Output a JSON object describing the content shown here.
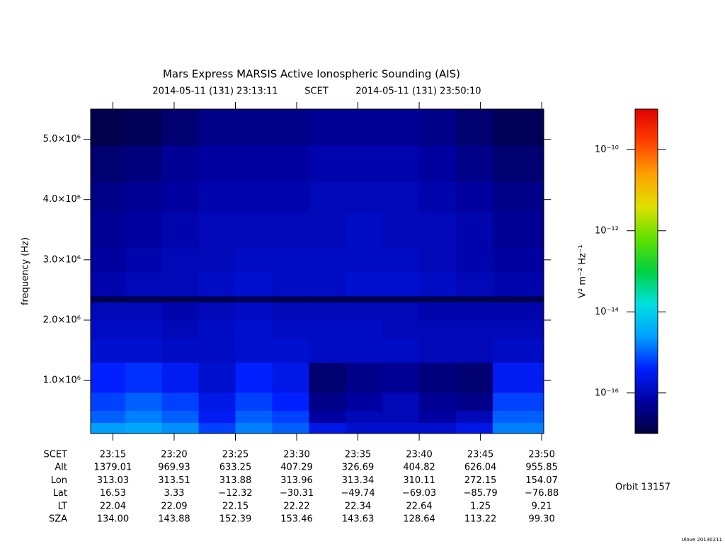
{
  "chart_data": {
    "type": "spectrogram",
    "title": "Mars Express MARSIS Active Ionospheric Sounding (AIS)",
    "subtitle_start": "2014-05-11 (131) 23:13:11",
    "subtitle_mid": "SCET",
    "subtitle_end": "2014-05-11 (131) 23:50:10",
    "ylabel": "frequency (Hz)",
    "xlim": [
      "23:13:11",
      "23:50:10"
    ],
    "xticks": [
      "23:15",
      "23:20",
      "23:25",
      "23:30",
      "23:35",
      "23:40",
      "23:45",
      "23:50"
    ],
    "ylim": [
      120000,
      5500000
    ],
    "yticks": [
      {
        "value": 1000000,
        "label": "1.0×10⁶"
      },
      {
        "value": 2000000,
        "label": "2.0×10⁶"
      },
      {
        "value": 3000000,
        "label": "3.0×10⁶"
      },
      {
        "value": 4000000,
        "label": "4.0×10⁶"
      },
      {
        "value": 5000000,
        "label": "5.0×10⁶"
      }
    ],
    "colorbar_label": "V² m⁻² Hz⁻¹",
    "clim": [
      -17,
      -9
    ],
    "cticks": [
      {
        "value": -10,
        "label": "10⁻¹⁰"
      },
      {
        "value": -12,
        "label": "10⁻¹²"
      },
      {
        "value": -14,
        "label": "10⁻¹⁴"
      },
      {
        "value": -16,
        "label": "10⁻¹⁶"
      }
    ],
    "colormap": [
      "#000040",
      "#0000a0",
      "#0020ff",
      "#00a0ff",
      "#00e0e0",
      "#00d040",
      "#60e000",
      "#e0e000",
      "#ffa000",
      "#ff4000",
      "#e00000"
    ],
    "time_bins": [
      "23:13:11",
      "23:16",
      "23:19",
      "23:22",
      "23:25",
      "23:28",
      "23:31",
      "23:34",
      "23:37",
      "23:40",
      "23:43",
      "23:46",
      "23:50:10"
    ],
    "freq_bins": [
      120000,
      300000,
      500000,
      800000,
      1300000,
      1700000,
      2000000,
      2300000,
      2400000,
      2800000,
      3200000,
      3800000,
      4300000,
      4900000,
      5500000
    ],
    "z": [
      [
        -14.6,
        -14.5,
        -14.7,
        -15.2,
        -14.8,
        -15.0,
        -15.6,
        -15.8,
        -15.8,
        -15.8,
        -15.6,
        -14.8
      ],
      [
        -15.0,
        -14.8,
        -15.0,
        -15.5,
        -15.0,
        -15.2,
        -16.2,
        -16.0,
        -16.0,
        -16.2,
        -16.0,
        -15.0
      ],
      [
        -15.2,
        -15.0,
        -15.2,
        -15.6,
        -15.2,
        -15.4,
        -16.4,
        -16.2,
        -16.0,
        -16.3,
        -16.4,
        -15.2
      ],
      [
        -15.4,
        -15.3,
        -15.5,
        -15.8,
        -15.4,
        -15.6,
        -16.6,
        -16.4,
        -16.3,
        -16.5,
        -16.6,
        -15.5
      ],
      [
        -15.8,
        -15.8,
        -15.9,
        -15.9,
        -15.8,
        -15.8,
        -15.9,
        -15.9,
        -15.9,
        -16.0,
        -16.0,
        -15.9
      ],
      [
        -15.9,
        -15.9,
        -16.0,
        -15.9,
        -15.8,
        -15.9,
        -15.9,
        -15.9,
        -16.0,
        -16.0,
        -16.0,
        -16.0
      ],
      [
        -16.0,
        -16.0,
        -16.1,
        -16.0,
        -15.9,
        -16.0,
        -16.0,
        -16.0,
        -16.0,
        -16.1,
        -16.1,
        -16.1
      ],
      [
        -16.9,
        -16.9,
        -16.9,
        -16.9,
        -16.8,
        -16.9,
        -16.9,
        -16.9,
        -16.9,
        -16.9,
        -16.9,
        -16.9
      ],
      [
        -16.1,
        -16.0,
        -16.0,
        -15.9,
        -15.8,
        -15.9,
        -15.9,
        -15.8,
        -15.8,
        -15.9,
        -16.0,
        -16.1
      ],
      [
        -16.2,
        -16.1,
        -16.0,
        -16.0,
        -15.9,
        -15.9,
        -15.9,
        -15.9,
        -15.9,
        -16.0,
        -16.1,
        -16.2
      ],
      [
        -16.3,
        -16.2,
        -16.1,
        -16.0,
        -16.0,
        -16.0,
        -16.0,
        -15.9,
        -16.0,
        -16.0,
        -16.1,
        -16.3
      ],
      [
        -16.4,
        -16.3,
        -16.2,
        -16.1,
        -16.1,
        -16.1,
        -16.0,
        -16.0,
        -16.0,
        -16.1,
        -16.2,
        -16.4
      ],
      [
        -16.6,
        -16.5,
        -16.3,
        -16.2,
        -16.2,
        -16.2,
        -16.1,
        -16.1,
        -16.1,
        -16.2,
        -16.4,
        -16.6
      ],
      [
        -16.9,
        -16.8,
        -16.6,
        -16.4,
        -16.4,
        -16.4,
        -16.3,
        -16.3,
        -16.3,
        -16.4,
        -16.6,
        -16.8
      ]
    ],
    "ephemeris": {
      "row_labels": [
        "SCET",
        "Alt",
        "Lon",
        "Lat",
        "LT",
        "SZA"
      ],
      "rows": [
        [
          "1379.01",
          "969.93",
          "633.25",
          "407.29",
          "326.69",
          "404.82",
          "626.04",
          "955.85"
        ],
        [
          "313.03",
          "313.51",
          "313.88",
          "313.96",
          "313.34",
          "310.11",
          "272.15",
          "154.07"
        ],
        [
          "16.53",
          "3.33",
          "−12.32",
          "−30.31",
          "−49.74",
          "−69.03",
          "−85.79",
          "−76.88"
        ],
        [
          "22.04",
          "22.09",
          "22.15",
          "22.22",
          "22.34",
          "22.64",
          "1.25",
          "9.21"
        ],
        [
          "134.00",
          "143.88",
          "152.39",
          "153.46",
          "143.63",
          "128.64",
          "113.22",
          "99.30"
        ]
      ]
    },
    "orbit": "Orbit 13157",
    "version": "Ulove 20130211"
  }
}
